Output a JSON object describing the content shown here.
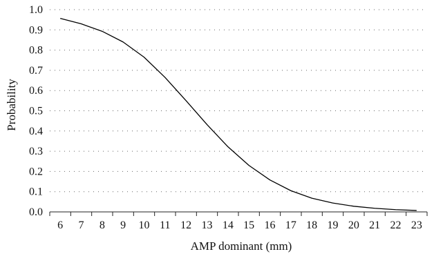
{
  "chart_data": {
    "type": "line",
    "title": "",
    "xlabel": "AMP dominant (mm)",
    "ylabel": "Probability",
    "x_ticks": [
      "6",
      "7",
      "8",
      "9",
      "10",
      "11",
      "12",
      "13",
      "14",
      "15",
      "16",
      "17",
      "18",
      "19",
      "20",
      "21",
      "22",
      "23"
    ],
    "y_ticks": [
      "0.0",
      "0.1",
      "0.2",
      "0.3",
      "0.4",
      "0.5",
      "0.6",
      "0.7",
      "0.8",
      "0.9",
      "1.0"
    ],
    "xlim": [
      6,
      23
    ],
    "ylim": [
      0,
      1
    ],
    "grid": "horizontal dotted",
    "series": [
      {
        "x": [
          6,
          7,
          8,
          9,
          10,
          11,
          12,
          13,
          14,
          15,
          16,
          17,
          18,
          19,
          20,
          21,
          22,
          23
        ],
        "y": [
          0.957,
          0.93,
          0.893,
          0.84,
          0.765,
          0.665,
          0.55,
          0.432,
          0.322,
          0.23,
          0.158,
          0.105,
          0.068,
          0.044,
          0.028,
          0.018,
          0.011,
          0.007
        ],
        "color": "#000000"
      }
    ]
  }
}
